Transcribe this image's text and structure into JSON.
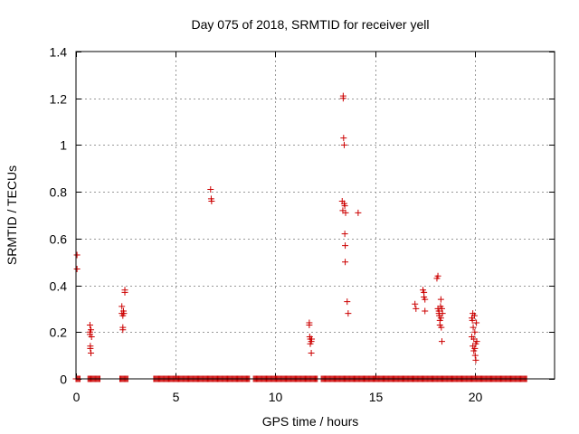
{
  "chart_data": {
    "type": "scatter",
    "title": "Day 075 of 2018, SRMTID for receiver yell",
    "xlabel": "GPS time / hours",
    "ylabel": "SRMTID / TECUs",
    "xlim": [
      0,
      24
    ],
    "ylim": [
      0,
      1.4
    ],
    "xticks": [
      0,
      5,
      10,
      15,
      20
    ],
    "yticks": [
      0,
      0.2,
      0.4,
      0.6,
      0.8,
      1,
      1.2,
      1.4
    ],
    "ytick_labels": [
      "0",
      "0.2",
      "0.4",
      "0.6",
      "0.8",
      "1",
      "1.2",
      "1.4"
    ],
    "grid": true,
    "marker": "+",
    "color": "#cc0000",
    "baseline_segments": [
      [
        0,
        0.2
      ],
      [
        0.6,
        1.2
      ],
      [
        2.2,
        2.6
      ],
      [
        3.9,
        8.7
      ],
      [
        8.9,
        12.1
      ],
      [
        12.3,
        22.6
      ]
    ],
    "series": [
      {
        "name": "SRMTID",
        "x": [
          0.05,
          0.05,
          0.7,
          0.7,
          0.7,
          0.72,
          0.72,
          0.75,
          0.75,
          0.78,
          2.3,
          2.3,
          2.35,
          2.35,
          2.35,
          2.38,
          2.4,
          2.45,
          2.45,
          6.75,
          6.78,
          6.8,
          11.7,
          11.7,
          11.72,
          11.75,
          11.75,
          11.8,
          11.8,
          11.82,
          13.35,
          13.38,
          13.4,
          13.4,
          13.42,
          13.45,
          13.45,
          13.48,
          13.48,
          13.5,
          13.5,
          13.52,
          13.6,
          13.65,
          14.15,
          17.0,
          17.05,
          17.4,
          17.45,
          17.45,
          17.5,
          17.5,
          18.1,
          18.15,
          18.15,
          18.2,
          18.2,
          18.22,
          18.25,
          18.25,
          18.28,
          18.3,
          18.3,
          18.32,
          18.35,
          18.35,
          18.38,
          19.85,
          19.85,
          19.88,
          19.9,
          19.9,
          19.92,
          19.95,
          19.95,
          19.98,
          20.0,
          20.0,
          20.02,
          20.05,
          20.05,
          20.08,
          20.1
        ],
        "y": [
          0.53,
          0.47,
          0.23,
          0.2,
          0.19,
          0.14,
          0.13,
          0.11,
          0.21,
          0.18,
          0.31,
          0.28,
          0.27,
          0.22,
          0.21,
          0.29,
          0.28,
          0.38,
          0.37,
          0.81,
          0.77,
          0.76,
          0.24,
          0.23,
          0.18,
          0.17,
          0.15,
          0.11,
          0.16,
          0.17,
          0.76,
          0.72,
          1.21,
          1.2,
          1.03,
          1.0,
          0.75,
          0.74,
          0.62,
          0.57,
          0.5,
          0.71,
          0.33,
          0.28,
          0.71,
          0.32,
          0.3,
          0.38,
          0.37,
          0.35,
          0.34,
          0.29,
          0.43,
          0.44,
          0.3,
          0.29,
          0.28,
          0.27,
          0.25,
          0.23,
          0.31,
          0.34,
          0.26,
          0.22,
          0.3,
          0.16,
          0.28,
          0.26,
          0.18,
          0.25,
          0.28,
          0.14,
          0.22,
          0.17,
          0.12,
          0.27,
          0.13,
          0.2,
          0.1,
          0.08,
          0.15,
          0.24,
          0.16
        ]
      }
    ]
  }
}
